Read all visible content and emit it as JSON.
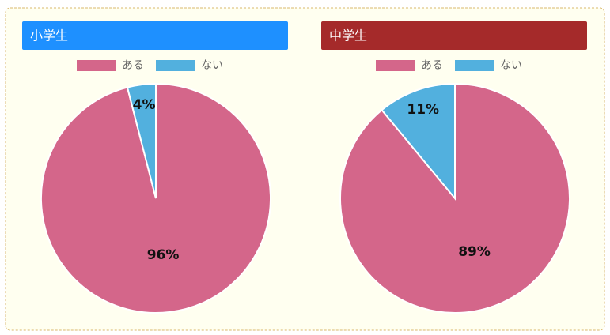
{
  "chart_data": [
    {
      "type": "pie",
      "title": "小学生",
      "title_color": "#1e90ff",
      "categories": [
        "ある",
        "ない"
      ],
      "values": [
        96,
        4
      ],
      "value_labels": [
        "96%",
        "4%"
      ],
      "colors": [
        "#d4668a",
        "#52b0de"
      ]
    },
    {
      "type": "pie",
      "title": "中学生",
      "title_color": "#a52a2a",
      "categories": [
        "ある",
        "ない"
      ],
      "values": [
        89,
        11
      ],
      "value_labels": [
        "89%",
        "11%"
      ],
      "colors": [
        "#d4668a",
        "#52b0de"
      ]
    }
  ]
}
